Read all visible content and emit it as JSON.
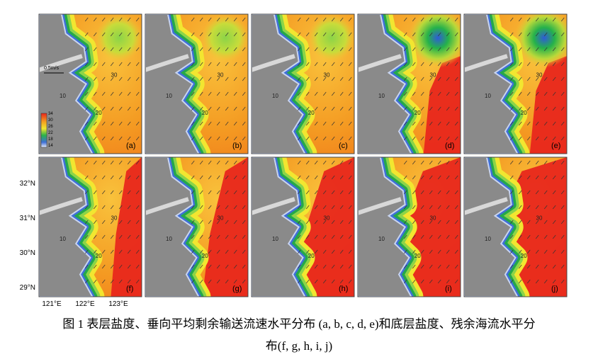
{
  "figure": {
    "panels": [
      {
        "label": "(a)",
        "contour_labels": [
          "10",
          "20",
          "30"
        ]
      },
      {
        "label": "(b)",
        "contour_labels": [
          "10",
          "20",
          "30"
        ]
      },
      {
        "label": "(c)",
        "contour_labels": [
          "10",
          "20",
          "30"
        ]
      },
      {
        "label": "(d)",
        "contour_labels": [
          "10",
          "20",
          "30"
        ]
      },
      {
        "label": "(e)",
        "contour_labels": [
          "10",
          "20",
          "30"
        ]
      },
      {
        "label": "(f)",
        "contour_labels": [
          "10",
          "20",
          "30"
        ]
      },
      {
        "label": "(g)",
        "contour_labels": [
          "10",
          "20",
          "30"
        ]
      },
      {
        "label": "(h)",
        "contour_labels": [
          "10",
          "20",
          "30"
        ]
      },
      {
        "label": "(i)",
        "contour_labels": [
          "10",
          "20",
          "30"
        ]
      },
      {
        "label": "(j)",
        "contour_labels": [
          "10",
          "20",
          "30"
        ]
      }
    ],
    "scale_label": "0.5m/s",
    "colorbar_ticks": [
      34,
      30,
      26,
      22,
      18,
      14
    ],
    "lat_labels": [
      "32°N",
      "31°N",
      "30°N",
      "29°N"
    ],
    "lon_labels": [
      "121°E",
      "122°E",
      "123°E"
    ],
    "caption": {
      "line1": "图 1  表层盐度、垂向平均剩余输送流速水平分布  (a, b, c, d, e)和底层盐度、残余海流水平分",
      "line2": "布(f, g, h, i, j)"
    }
  }
}
